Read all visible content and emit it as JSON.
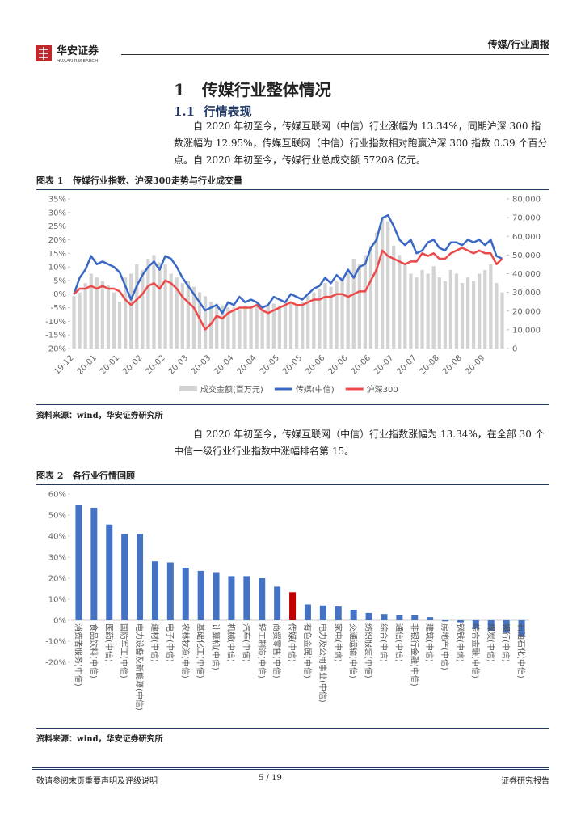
{
  "header": {
    "logo_name": "华安证券",
    "logo_sub": "HUAAN RESEARCH",
    "report_type": "传媒/行业周报"
  },
  "section": {
    "number": "1",
    "title": "传媒行业整体情况"
  },
  "subsection": {
    "number": "1.1",
    "title": "行情表现"
  },
  "paragraphs": [
    "自 2020 年初至今，传媒互联网（中信）行业涨幅为 13.34%，同期沪深 300 指数涨幅为 12.95%，传媒互联网（中信）行业指数相对跑赢沪深 300 指数 0.39 个百分点。自 2020 年初至今，传媒行业总成交额 57208 亿元。",
    "自 2020 年初至今，传媒互联网（中信）行业指数涨幅为 13.34%，在全部 30 个中信一级行业行业指数中涨幅排名第 15。"
  ],
  "figures": [
    {
      "label": "图表 1",
      "caption": "传媒行业指数、沪深300走势与行业成交量",
      "source": "资料来源：wind，华安证券研究所"
    },
    {
      "label": "图表 2",
      "caption": "各行业行情回顾",
      "source": "资料来源：wind，华安证券研究所"
    }
  ],
  "chart_data": [
    {
      "type": "combo",
      "categories": [
        "19-12",
        null,
        null,
        null,
        "20-01",
        null,
        null,
        null,
        "20-01",
        null,
        null,
        null,
        "20-02",
        null,
        null,
        null,
        "20-02",
        null,
        null,
        null,
        "20-03",
        null,
        null,
        null,
        "20-03",
        null,
        null,
        null,
        "20-04",
        null,
        null,
        null,
        "20-04",
        null,
        null,
        null,
        "20-05",
        null,
        null,
        null,
        "20-05",
        null,
        null,
        null,
        "20-06",
        null,
        null,
        null,
        "20-06",
        null,
        null,
        null,
        "20-06",
        null,
        null,
        null,
        "20-07",
        null,
        null,
        null,
        "20-07",
        null,
        null,
        null,
        "20-08",
        null,
        null,
        null,
        "20-08",
        null,
        null,
        null,
        "20-09",
        null,
        null,
        null
      ],
      "series": [
        {
          "name": "成交金额(百万元)",
          "type": "bar",
          "axis": "y2",
          "color": "#d3d3d3",
          "values": [
            28000,
            30000,
            35000,
            40000,
            38000,
            36000,
            34000,
            30000,
            25000,
            38000,
            40000,
            45000,
            42000,
            48000,
            50000,
            46000,
            45000,
            40000,
            38000,
            35000,
            36000,
            33000,
            30000,
            28000,
            25000,
            24000,
            23000,
            22000,
            22000,
            21000,
            23000,
            22000,
            24000,
            22000,
            23000,
            24000,
            23000,
            25000,
            24000,
            23000,
            25000,
            28000,
            30000,
            32000,
            35000,
            33000,
            36000,
            38000,
            42000,
            48000,
            45000,
            50000,
            55000,
            62000,
            70000,
            68000,
            55000,
            50000,
            45000,
            40000,
            38000,
            42000,
            40000,
            44000,
            38000,
            36000,
            42000,
            40000,
            35000,
            38000,
            36000,
            40000,
            42000,
            45000,
            35000,
            30000
          ]
        },
        {
          "name": "传媒(中信)",
          "type": "line",
          "color": "#3a68c6",
          "values": [
            0,
            6,
            9,
            14,
            11,
            12,
            11,
            10,
            8,
            3,
            -2,
            3,
            7,
            10,
            12,
            9,
            14,
            13,
            10,
            6,
            3,
            0,
            -3,
            -6,
            -5,
            -4,
            -7,
            -3,
            -4,
            -1,
            -3,
            -2,
            -3,
            -5,
            -4,
            -1,
            -2,
            -3,
            0,
            -1,
            -2,
            0,
            2,
            3,
            6,
            4,
            7,
            5,
            9,
            6,
            10,
            11,
            17,
            20,
            28,
            29,
            25,
            20,
            18,
            20,
            15,
            16,
            19,
            20,
            17,
            16,
            19,
            19,
            18,
            20,
            19,
            20,
            18,
            20,
            14,
            13
          ]
        },
        {
          "name": "沪深300",
          "type": "line",
          "color": "#ec4a4a",
          "values": [
            0,
            2,
            2,
            3,
            2,
            3,
            2,
            2,
            1,
            -2,
            -4,
            -2,
            0,
            3,
            4,
            2,
            5,
            4,
            2,
            -1,
            -3,
            -5,
            -9,
            -13,
            -11,
            -8,
            -9,
            -7,
            -6,
            -5,
            -5,
            -5,
            -4,
            -6,
            -7,
            -6,
            -5,
            -4,
            -3,
            -4,
            -4,
            -3,
            -2,
            -2,
            -1,
            -1,
            0,
            0,
            -1,
            0,
            1,
            1,
            5,
            9,
            16,
            14,
            13,
            12,
            11,
            12,
            12,
            15,
            14,
            15,
            13,
            13,
            15,
            16,
            17,
            16,
            15,
            16,
            15,
            15,
            11,
            13
          ]
        }
      ],
      "ylim": [
        -20,
        35
      ],
      "yticks": [
        {
          "value": -20,
          "label": "-20%"
        },
        {
          "value": -15,
          "label": "-15%"
        },
        {
          "value": -10,
          "label": "-10%"
        },
        {
          "value": -5,
          "label": "-5%"
        },
        {
          "value": 0,
          "label": "0%"
        },
        {
          "value": 5,
          "label": "5%"
        },
        {
          "value": 10,
          "label": "10%"
        },
        {
          "value": 15,
          "label": "15%"
        },
        {
          "value": 20,
          "label": "20%"
        },
        {
          "value": 25,
          "label": "25%"
        },
        {
          "value": 30,
          "label": "30%"
        },
        {
          "value": 35,
          "label": "35%"
        }
      ],
      "y2lim": [
        0,
        80000
      ],
      "y2ticks": [
        0,
        {
          "value": 10000,
          "label": "10,000"
        },
        {
          "value": 20000,
          "label": "20,000"
        },
        {
          "value": 30000,
          "label": "30,000"
        },
        {
          "value": 40000,
          "label": "40,000"
        },
        {
          "value": 50000,
          "label": "50,000"
        },
        {
          "value": 60000,
          "label": "60,000"
        },
        {
          "value": 70000,
          "label": "70,000"
        },
        {
          "value": 80000,
          "label": "80,000"
        }
      ],
      "legend": "bottom"
    },
    {
      "type": "bar",
      "categories": [
        "消费者服务(中信)",
        "食品饮料(中信)",
        "医药(中信)",
        "国防军工(中信)",
        "电力设备及新能源(中信)",
        "建材(中信)",
        "电子(中信)",
        "农林牧渔(中信)",
        "基础化工(中信)",
        "计算机(中信)",
        "机械(中信)",
        "汽车(中信)",
        "轻工制造(中信)",
        "商贸零售(中信)",
        "传媒(中信)",
        "有色金属(中信)",
        "电力及公用事业(中信)",
        "家电(中信)",
        "交通运输(中信)",
        "纺织服装(中信)",
        "综合(中信)",
        "通信(中信)",
        "非银行金融(中信)",
        "建筑(中信)",
        "房地产(中信)",
        "钢铁(中信)",
        "综合金融(中信)",
        "煤炭(中信)",
        "银行(中信)",
        "石油石化(中信)"
      ],
      "values": [
        55,
        53.5,
        45.5,
        41,
        41,
        28,
        27.5,
        25,
        23.5,
        22.5,
        21,
        21,
        20,
        16,
        13.34,
        7.5,
        7,
        6.5,
        5,
        3.5,
        3,
        2.5,
        2.5,
        1.5,
        -0.5,
        -1,
        -4,
        -5,
        -6,
        -7.5
      ],
      "colors": [
        "#4472c4",
        "#4472c4",
        "#4472c4",
        "#4472c4",
        "#4472c4",
        "#4472c4",
        "#4472c4",
        "#4472c4",
        "#4472c4",
        "#4472c4",
        "#4472c4",
        "#4472c4",
        "#4472c4",
        "#4472c4",
        "#c00000",
        "#4472c4",
        "#4472c4",
        "#4472c4",
        "#4472c4",
        "#4472c4",
        "#4472c4",
        "#4472c4",
        "#4472c4",
        "#4472c4",
        "#4472c4",
        "#4472c4",
        "#4472c4",
        "#4472c4",
        "#4472c4",
        "#4472c4"
      ],
      "ylim": [
        -20,
        60
      ],
      "yticks": [
        {
          "value": -20,
          "label": "-20%"
        },
        {
          "value": -10,
          "label": "-10%"
        },
        {
          "value": 0,
          "label": "0%"
        },
        {
          "value": 10,
          "label": "10%"
        },
        {
          "value": 20,
          "label": "20%"
        },
        {
          "value": 30,
          "label": "30%"
        },
        {
          "value": 40,
          "label": "40%"
        },
        {
          "value": 50,
          "label": "50%"
        },
        {
          "value": 60,
          "label": "60%"
        }
      ]
    }
  ],
  "footer": {
    "disclaimer": "敬请参阅末页重要声明及评级说明",
    "page": "5 / 19",
    "doc_type": "证券研究报告"
  }
}
